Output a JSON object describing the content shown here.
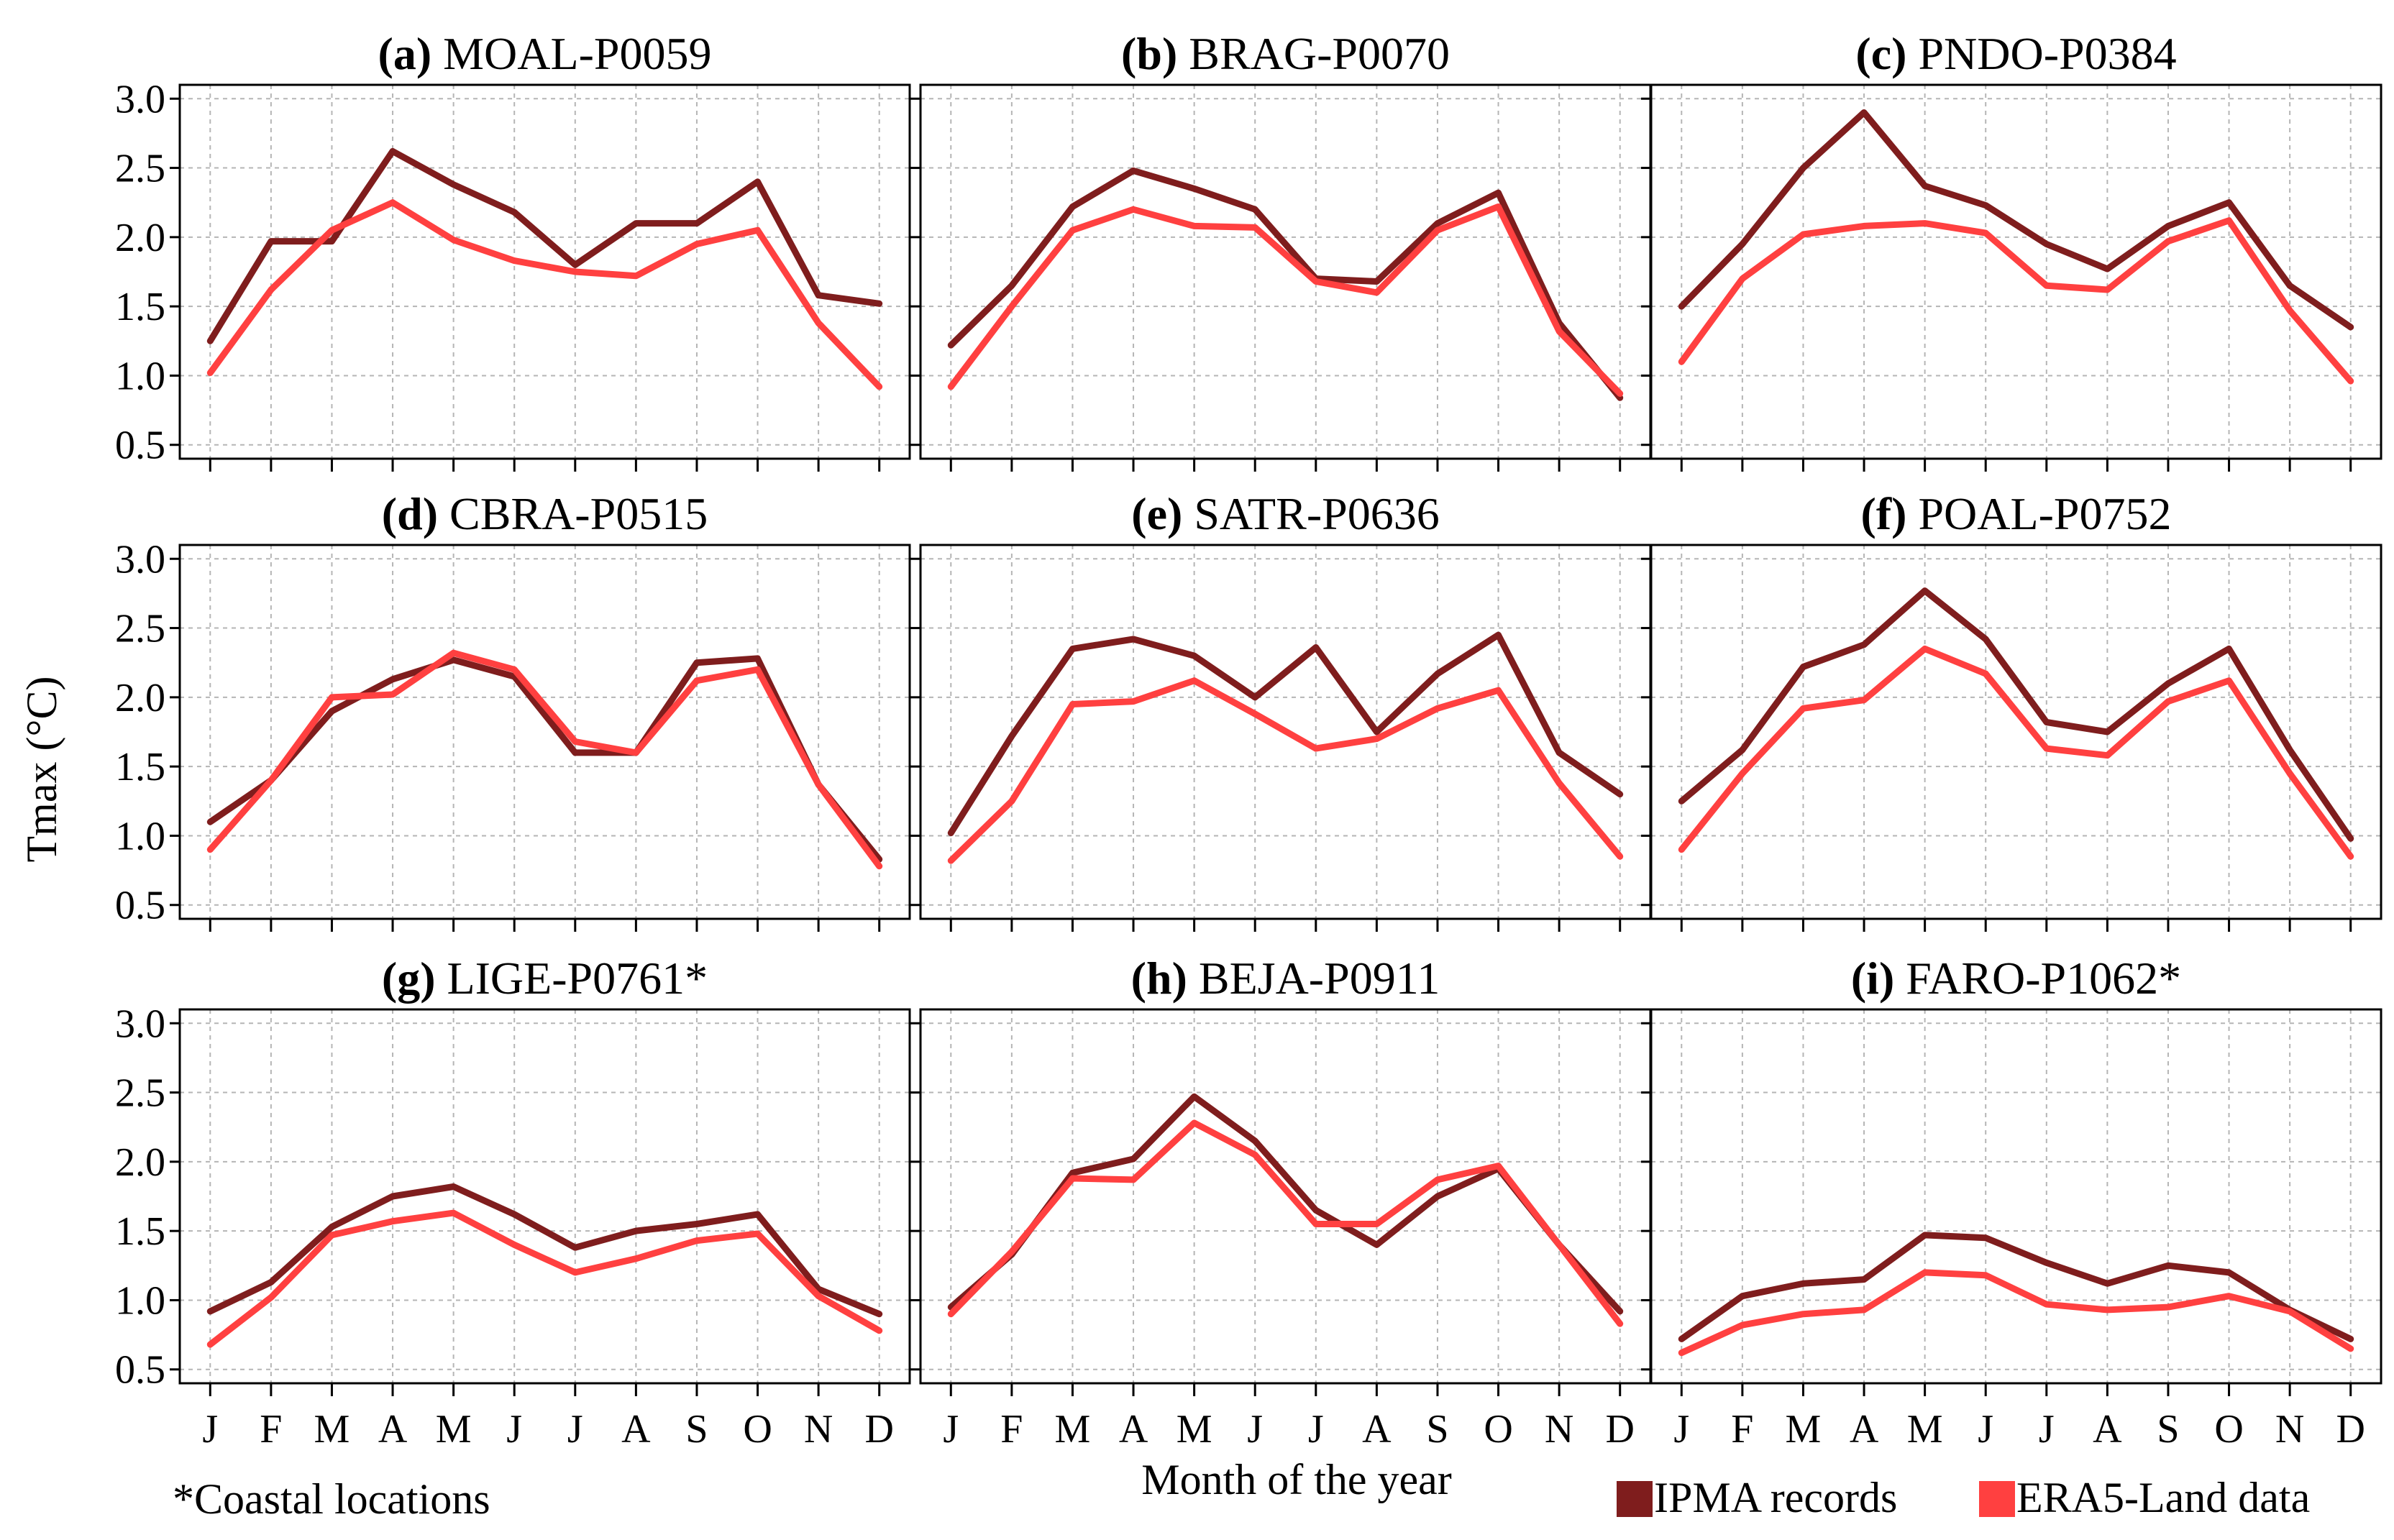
{
  "figure": {
    "ylabel": "Tmax (°C)",
    "xlabel": "Month of the year",
    "footnote": "*Coastal locations",
    "legend": [
      {
        "label": "IPMA records",
        "color": "#7f1d1d"
      },
      {
        "label": "ERA5-Land data",
        "color": "#ff4040"
      }
    ]
  },
  "chart_data": [
    {
      "type": "line",
      "tag": "(a)",
      "name": "MOAL-P0059",
      "categories": [
        "J",
        "F",
        "M",
        "A",
        "M",
        "J",
        "J",
        "A",
        "S",
        "O",
        "N",
        "D"
      ],
      "yticks": [
        "0.5",
        "1.0",
        "1.5",
        "2.0",
        "2.5",
        "3.0"
      ],
      "ylim": [
        0.4,
        3.1
      ],
      "series": [
        {
          "name": "IPMA records",
          "values": [
            1.25,
            1.97,
            1.97,
            2.62,
            2.38,
            2.18,
            1.8,
            2.1,
            2.1,
            2.4,
            1.58,
            1.52
          ]
        },
        {
          "name": "ERA5-Land data",
          "values": [
            1.02,
            1.62,
            2.05,
            2.25,
            1.98,
            1.83,
            1.75,
            1.72,
            1.95,
            2.05,
            1.38,
            0.92
          ]
        }
      ]
    },
    {
      "type": "line",
      "tag": "(b)",
      "name": "BRAG-P0070",
      "categories": [
        "J",
        "F",
        "M",
        "A",
        "M",
        "J",
        "J",
        "A",
        "S",
        "O",
        "N",
        "D"
      ],
      "yticks": [
        "0.5",
        "1.0",
        "1.5",
        "2.0",
        "2.5",
        "3.0"
      ],
      "ylim": [
        0.4,
        3.1
      ],
      "series": [
        {
          "name": "IPMA records",
          "values": [
            1.22,
            1.65,
            2.22,
            2.48,
            2.35,
            2.2,
            1.7,
            1.68,
            2.1,
            2.32,
            1.38,
            0.84
          ]
        },
        {
          "name": "ERA5-Land data",
          "values": [
            0.92,
            1.5,
            2.05,
            2.2,
            2.08,
            2.07,
            1.68,
            1.6,
            2.05,
            2.22,
            1.32,
            0.87
          ]
        }
      ]
    },
    {
      "type": "line",
      "tag": "(c)",
      "name": "PNDO-P0384",
      "categories": [
        "J",
        "F",
        "M",
        "A",
        "M",
        "J",
        "J",
        "A",
        "S",
        "O",
        "N",
        "D"
      ],
      "yticks": [
        "0.5",
        "1.0",
        "1.5",
        "2.0",
        "2.5",
        "3.0"
      ],
      "ylim": [
        0.4,
        3.1
      ],
      "series": [
        {
          "name": "IPMA records",
          "values": [
            1.5,
            1.95,
            2.5,
            2.9,
            2.37,
            2.23,
            1.95,
            1.77,
            2.08,
            2.25,
            1.65,
            1.35
          ]
        },
        {
          "name": "ERA5-Land data",
          "values": [
            1.1,
            1.7,
            2.02,
            2.08,
            2.1,
            2.03,
            1.65,
            1.62,
            1.97,
            2.12,
            1.47,
            0.96
          ]
        }
      ]
    },
    {
      "type": "line",
      "tag": "(d)",
      "name": "CBRA-P0515",
      "categories": [
        "J",
        "F",
        "M",
        "A",
        "M",
        "J",
        "J",
        "A",
        "S",
        "O",
        "N",
        "D"
      ],
      "yticks": [
        "0.5",
        "1.0",
        "1.5",
        "2.0",
        "2.5",
        "3.0"
      ],
      "ylim": [
        0.4,
        3.1
      ],
      "series": [
        {
          "name": "IPMA records",
          "values": [
            1.1,
            1.4,
            1.9,
            2.13,
            2.27,
            2.15,
            1.6,
            1.6,
            2.25,
            2.28,
            1.37,
            0.83
          ]
        },
        {
          "name": "ERA5-Land data",
          "values": [
            0.9,
            1.4,
            2.0,
            2.02,
            2.32,
            2.2,
            1.68,
            1.6,
            2.12,
            2.2,
            1.37,
            0.78
          ]
        }
      ]
    },
    {
      "type": "line",
      "tag": "(e)",
      "name": "SATR-P0636",
      "categories": [
        "J",
        "F",
        "M",
        "A",
        "M",
        "J",
        "J",
        "A",
        "S",
        "O",
        "N",
        "D"
      ],
      "yticks": [
        "0.5",
        "1.0",
        "1.5",
        "2.0",
        "2.5",
        "3.0"
      ],
      "ylim": [
        0.4,
        3.1
      ],
      "series": [
        {
          "name": "IPMA records",
          "values": [
            1.02,
            1.72,
            2.35,
            2.42,
            2.3,
            2.0,
            2.36,
            1.75,
            2.17,
            2.45,
            1.6,
            1.3
          ]
        },
        {
          "name": "ERA5-Land data",
          "values": [
            0.82,
            1.25,
            1.95,
            1.97,
            2.12,
            1.88,
            1.63,
            1.7,
            1.92,
            2.05,
            1.38,
            0.85
          ]
        }
      ]
    },
    {
      "type": "line",
      "tag": "(f)",
      "name": "POAL-P0752",
      "categories": [
        "J",
        "F",
        "M",
        "A",
        "M",
        "J",
        "J",
        "A",
        "S",
        "O",
        "N",
        "D"
      ],
      "yticks": [
        "0.5",
        "1.0",
        "1.5",
        "2.0",
        "2.5",
        "3.0"
      ],
      "ylim": [
        0.4,
        3.1
      ],
      "series": [
        {
          "name": "IPMA records",
          "values": [
            1.25,
            1.62,
            2.22,
            2.38,
            2.77,
            2.42,
            1.82,
            1.75,
            2.1,
            2.35,
            1.62,
            0.98
          ]
        },
        {
          "name": "ERA5-Land data",
          "values": [
            0.9,
            1.45,
            1.92,
            1.98,
            2.35,
            2.17,
            1.63,
            1.58,
            1.97,
            2.12,
            1.45,
            0.85
          ]
        }
      ]
    },
    {
      "type": "line",
      "tag": "(g)",
      "name": "LIGE-P0761*",
      "categories": [
        "J",
        "F",
        "M",
        "A",
        "M",
        "J",
        "J",
        "A",
        "S",
        "O",
        "N",
        "D"
      ],
      "yticks": [
        "0.5",
        "1.0",
        "1.5",
        "2.0",
        "2.5",
        "3.0"
      ],
      "ylim": [
        0.4,
        3.1
      ],
      "series": [
        {
          "name": "IPMA records",
          "values": [
            0.92,
            1.13,
            1.53,
            1.75,
            1.82,
            1.62,
            1.38,
            1.5,
            1.55,
            1.62,
            1.08,
            0.9
          ]
        },
        {
          "name": "ERA5-Land data",
          "values": [
            0.68,
            1.02,
            1.47,
            1.57,
            1.63,
            1.4,
            1.2,
            1.3,
            1.43,
            1.48,
            1.03,
            0.78
          ]
        }
      ]
    },
    {
      "type": "line",
      "tag": "(h)",
      "name": "BEJA-P0911",
      "categories": [
        "J",
        "F",
        "M",
        "A",
        "M",
        "J",
        "J",
        "A",
        "S",
        "O",
        "N",
        "D"
      ],
      "yticks": [
        "0.5",
        "1.0",
        "1.5",
        "2.0",
        "2.5",
        "3.0"
      ],
      "ylim": [
        0.4,
        3.1
      ],
      "series": [
        {
          "name": "IPMA records",
          "values": [
            0.95,
            1.33,
            1.92,
            2.02,
            2.47,
            2.15,
            1.65,
            1.4,
            1.75,
            1.95,
            1.4,
            0.92
          ]
        },
        {
          "name": "ERA5-Land data",
          "values": [
            0.9,
            1.35,
            1.88,
            1.87,
            2.28,
            2.05,
            1.55,
            1.55,
            1.87,
            1.97,
            1.4,
            0.83
          ]
        }
      ]
    },
    {
      "type": "line",
      "tag": "(i)",
      "name": "FARO-P1062*",
      "categories": [
        "J",
        "F",
        "M",
        "A",
        "M",
        "J",
        "J",
        "A",
        "S",
        "O",
        "N",
        "D"
      ],
      "yticks": [
        "0.5",
        "1.0",
        "1.5",
        "2.0",
        "2.5",
        "3.0"
      ],
      "ylim": [
        0.4,
        3.1
      ],
      "series": [
        {
          "name": "IPMA records",
          "values": [
            0.72,
            1.03,
            1.12,
            1.15,
            1.47,
            1.45,
            1.27,
            1.12,
            1.25,
            1.2,
            0.93,
            0.72
          ]
        },
        {
          "name": "ERA5-Land data",
          "values": [
            0.62,
            0.82,
            0.9,
            0.93,
            1.2,
            1.18,
            0.97,
            0.93,
            0.95,
            1.03,
            0.92,
            0.65
          ]
        }
      ]
    }
  ]
}
